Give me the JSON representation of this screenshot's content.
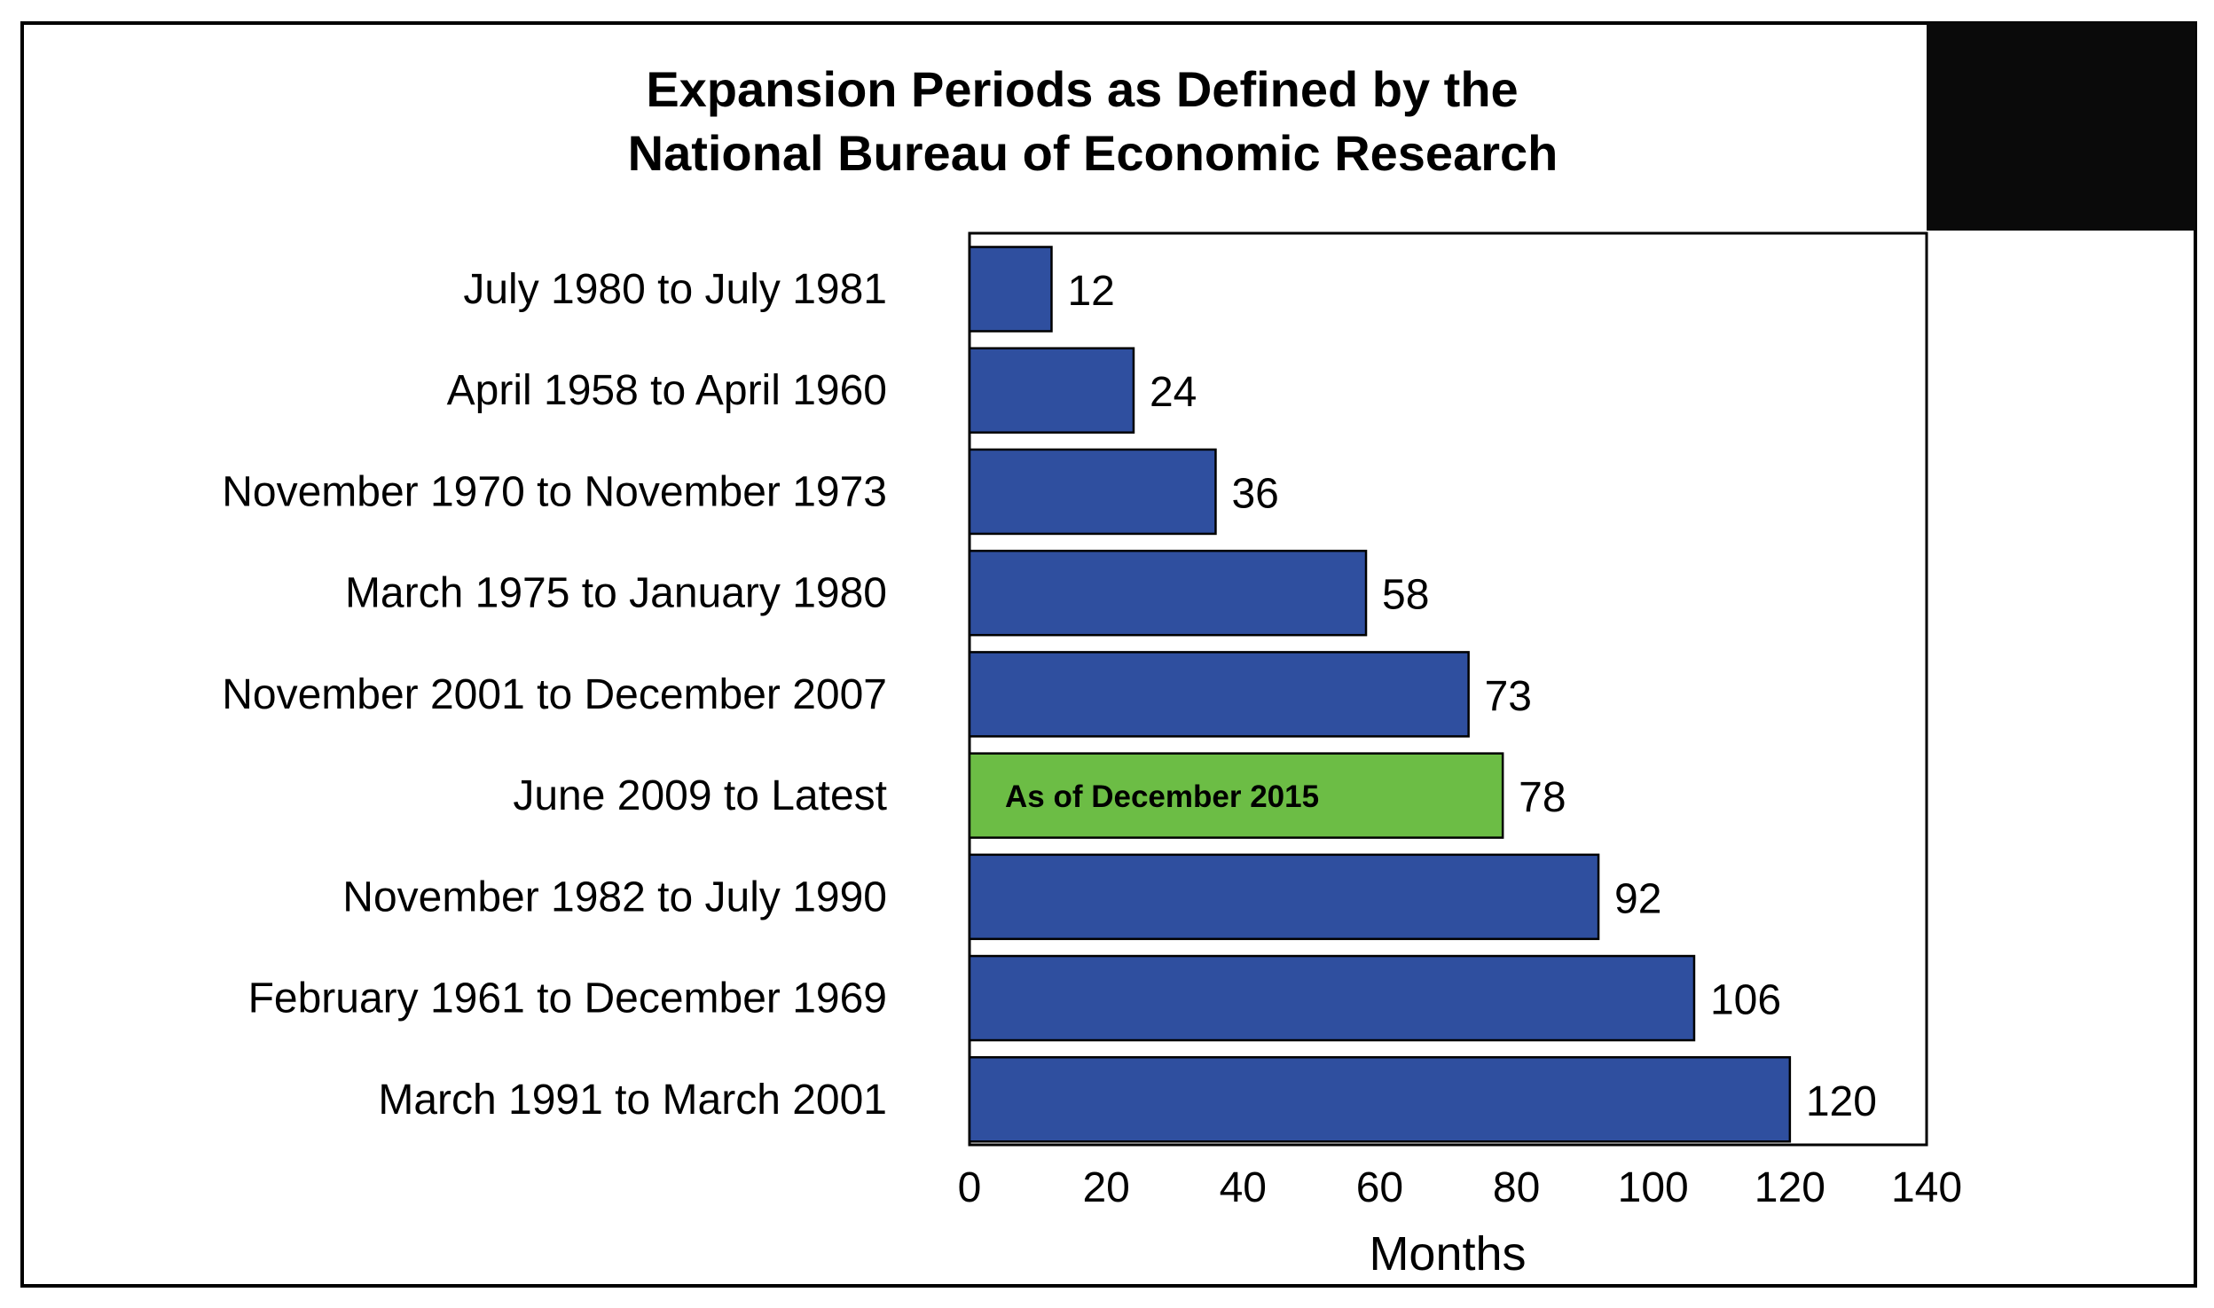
{
  "chart_data": {
    "type": "bar",
    "orientation": "horizontal",
    "title": [
      "Expansion Periods as Defined by the",
      "National Bureau of Economic Research"
    ],
    "xlabel": "Months",
    "ylabel": "",
    "xlim": [
      0,
      140
    ],
    "ticks": [
      "0",
      "20",
      "40",
      "60",
      "80",
      "100",
      "120",
      "140"
    ],
    "tick_values": [
      0,
      20,
      40,
      60,
      80,
      100,
      120,
      140
    ],
    "categories": [
      "July 1980 to July 1981",
      "April 1958 to April 1960",
      "November 1970 to November 1973",
      "March 1975 to January 1980",
      "November 2001 to December 2007",
      "June 2009 to Latest",
      "November 1982 to July 1990",
      "February 1961 to December 1969",
      "March 1991 to March 2001"
    ],
    "values": [
      12,
      24,
      36,
      58,
      73,
      78,
      92,
      106,
      120
    ],
    "value_labels": [
      "12",
      "24",
      "36",
      "58",
      "73",
      "78",
      "92",
      "106",
      "120"
    ],
    "bar_colors": [
      "#2f4f9f",
      "#2f4f9f",
      "#2f4f9f",
      "#2f4f9f",
      "#2f4f9f",
      "#6cbd45",
      "#2f4f9f",
      "#2f4f9f",
      "#2f4f9f"
    ],
    "annotation": {
      "category_index": 5,
      "text": "As of December 2015"
    },
    "grid": false
  }
}
